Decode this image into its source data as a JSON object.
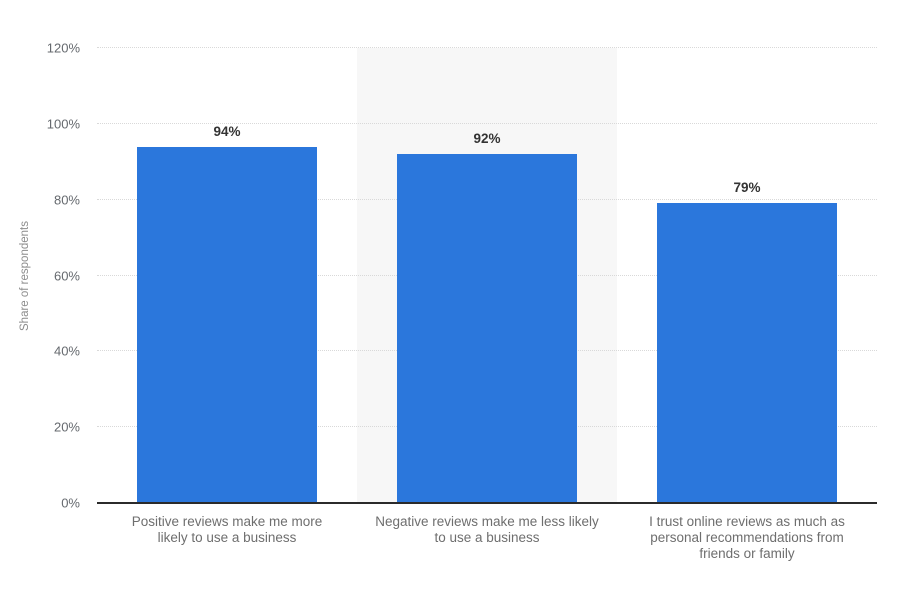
{
  "chart_data": {
    "type": "bar",
    "title": "",
    "categories": [
      "Positive reviews make me more\nlikely to use a business",
      "Negative reviews make me less likely\nto use a business",
      "I trust online reviews as much as\npersonal recommendations from\nfriends or family"
    ],
    "values": [
      94,
      92,
      79
    ],
    "value_labels": [
      "94%",
      "92%",
      "79%"
    ],
    "xlabel": "",
    "ylabel": "Share of respondents",
    "ylim": [
      0,
      120
    ],
    "yticks": [
      0,
      20,
      40,
      60,
      80,
      100,
      120
    ],
    "ytick_labels": [
      "0%",
      "20%",
      "40%",
      "60%",
      "80%",
      "100%",
      "120%"
    ],
    "grid": "horizontal dotted gridlines, solid dark baseline at 0%",
    "legend": "none",
    "band_behind_column_index": 1,
    "colors": {
      "bar": "#2b77dc",
      "column_band": "#f7f7f7",
      "gridline": "#d9d9d9",
      "axis_line": "#2b2b2b",
      "value_label_text": "#333333",
      "tick_label_text": "#65696e",
      "category_label_text": "#6e6e6e",
      "y_axis_title_text": "#8c8c8c",
      "background": "#ffffff"
    }
  }
}
